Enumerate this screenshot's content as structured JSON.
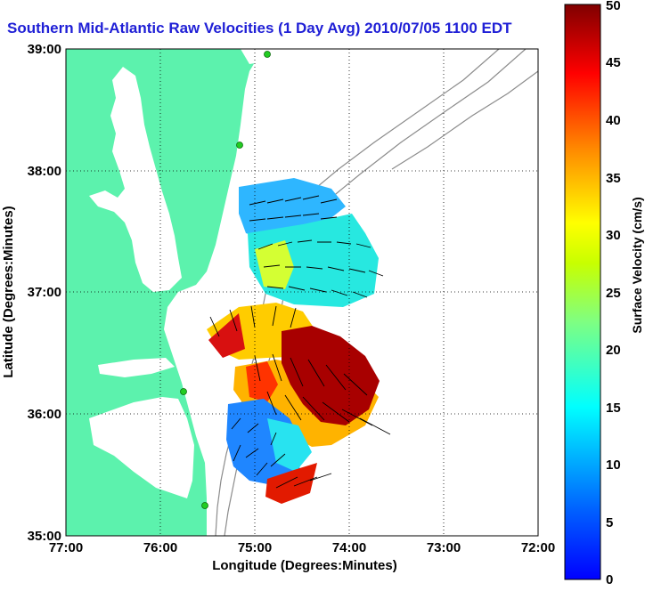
{
  "title": "Southern Mid-Atlantic Raw Velocities (1 Day Avg) 2010/07/05 1100 EDT",
  "colors": {
    "title": "#1f1fd6",
    "land": "#5cf2ad",
    "water": "#ffffff",
    "contour": "#8c8c8c",
    "grid": "#000000",
    "station": "#22cc22"
  },
  "map": {
    "xlabel": "Longitude (Degrees:Minutes)",
    "ylabel": "Latitude (Degrees:Minutes)",
    "lon_ticks": [
      "77:00",
      "76:00",
      "75:00",
      "74:00",
      "73:00",
      "72:00"
    ],
    "lat_ticks": [
      "39:00",
      "38:00",
      "37:00",
      "36:00",
      "35:00"
    ]
  },
  "colorbar": {
    "label": "Surface Velocity (cm/s)",
    "ticks": [
      "50",
      "45",
      "40",
      "35",
      "30",
      "25",
      "20",
      "15",
      "10",
      "5",
      "0"
    ],
    "min": 0,
    "max": 50
  }
}
